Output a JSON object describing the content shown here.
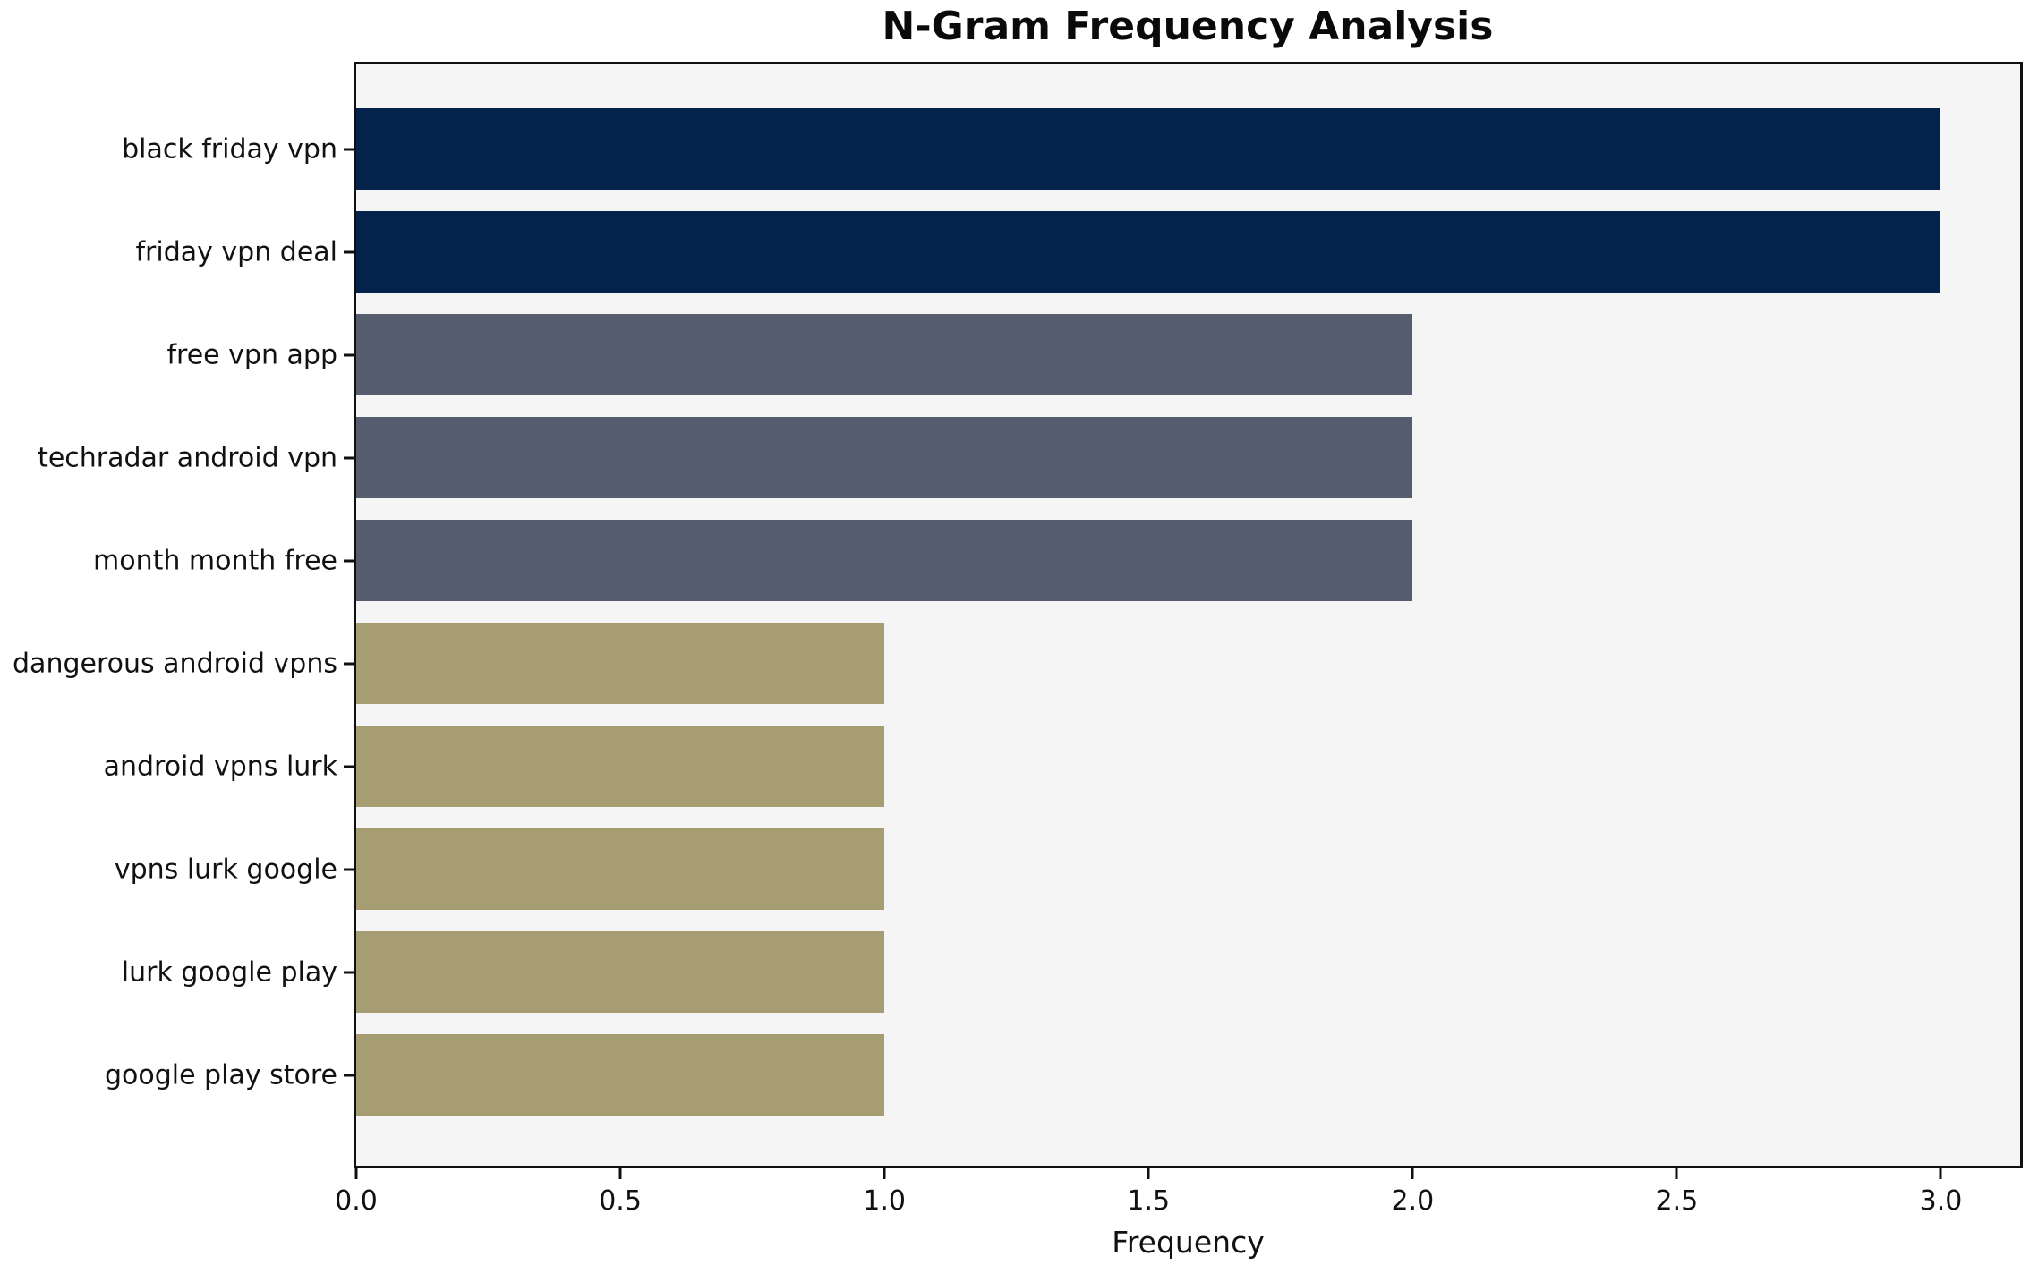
{
  "title": "N-Gram Frequency Analysis",
  "chart_data": {
    "type": "bar",
    "orientation": "horizontal",
    "title": "N-Gram Frequency Analysis",
    "xlabel": "Frequency",
    "ylabel": "",
    "categories": [
      "black friday vpn",
      "friday vpn deal",
      "free vpn app",
      "techradar android vpn",
      "month month free",
      "dangerous android vpns",
      "android vpns lurk",
      "vpns lurk google",
      "lurk google play",
      "google play store"
    ],
    "values": [
      3,
      3,
      2,
      2,
      2,
      1,
      1,
      1,
      1,
      1
    ],
    "xlim": [
      0,
      3.15
    ],
    "xticks": [
      0.0,
      0.5,
      1.0,
      1.5,
      2.0,
      2.5,
      3.0
    ],
    "xtick_labels": [
      "0.0",
      "0.5",
      "1.0",
      "1.5",
      "2.0",
      "2.5",
      "3.0"
    ],
    "bar_colors": [
      "#03234d",
      "#03234d",
      "#565d6e",
      "#565d6e",
      "#565d6e",
      "#a69e72",
      "#a69e72",
      "#a69e72",
      "#a69e72",
      "#a69e72"
    ],
    "grid": false,
    "legend": null,
    "plot_background": "#f5f5f6",
    "figure_background": "#ffffff",
    "spine_color": "#101010"
  }
}
